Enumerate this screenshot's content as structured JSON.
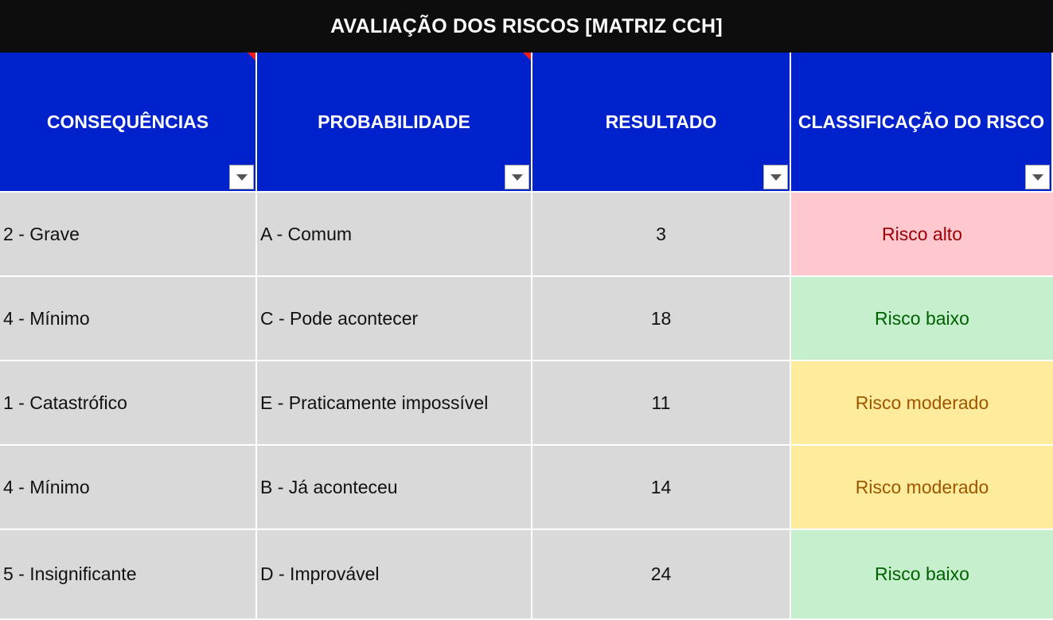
{
  "title": "AVALIAÇÃO DOS RISCOS [MATRIZ CCH]",
  "columns": [
    {
      "label": "CONSEQUÊNCIAS",
      "has_note": true
    },
    {
      "label": "PROBABILIDADE",
      "has_note": true
    },
    {
      "label": "RESULTADO",
      "has_note": false
    },
    {
      "label": "CLASSIFICAÇÃO DO RISCO",
      "has_note": false
    }
  ],
  "colors": {
    "title_bg": "#0d0d0d",
    "header_bg": "#0022cc",
    "cell_bg": "#d9d9d9",
    "note_mark": "#ff1a1a",
    "risk_high_bg": "#ffc7ce",
    "risk_high_fg": "#9c0006",
    "risk_low_bg": "#c6efce",
    "risk_low_fg": "#006100",
    "risk_moderate_bg": "#ffeb9c",
    "risk_moderate_fg": "#9c5700"
  },
  "rows": [
    {
      "consequencia": "2 - Grave",
      "probabilidade": "A - Comum",
      "resultado": "3",
      "classificacao": "Risco alto",
      "level": "high"
    },
    {
      "consequencia": "4 - Mínimo",
      "probabilidade": "C - Pode acontecer",
      "resultado": "18",
      "classificacao": "Risco baixo",
      "level": "low"
    },
    {
      "consequencia": "1 - Catastrófico",
      "probabilidade": "E - Praticamente impossível",
      "resultado": "11",
      "classificacao": "Risco moderado",
      "level": "moderate"
    },
    {
      "consequencia": "4 - Mínimo",
      "probabilidade": "B - Já aconteceu",
      "resultado": "14",
      "classificacao": "Risco moderado",
      "level": "moderate"
    },
    {
      "consequencia": "5 - Insignificante",
      "probabilidade": "D - Improvável",
      "resultado": "24",
      "classificacao": "Risco baixo",
      "level": "low"
    }
  ]
}
